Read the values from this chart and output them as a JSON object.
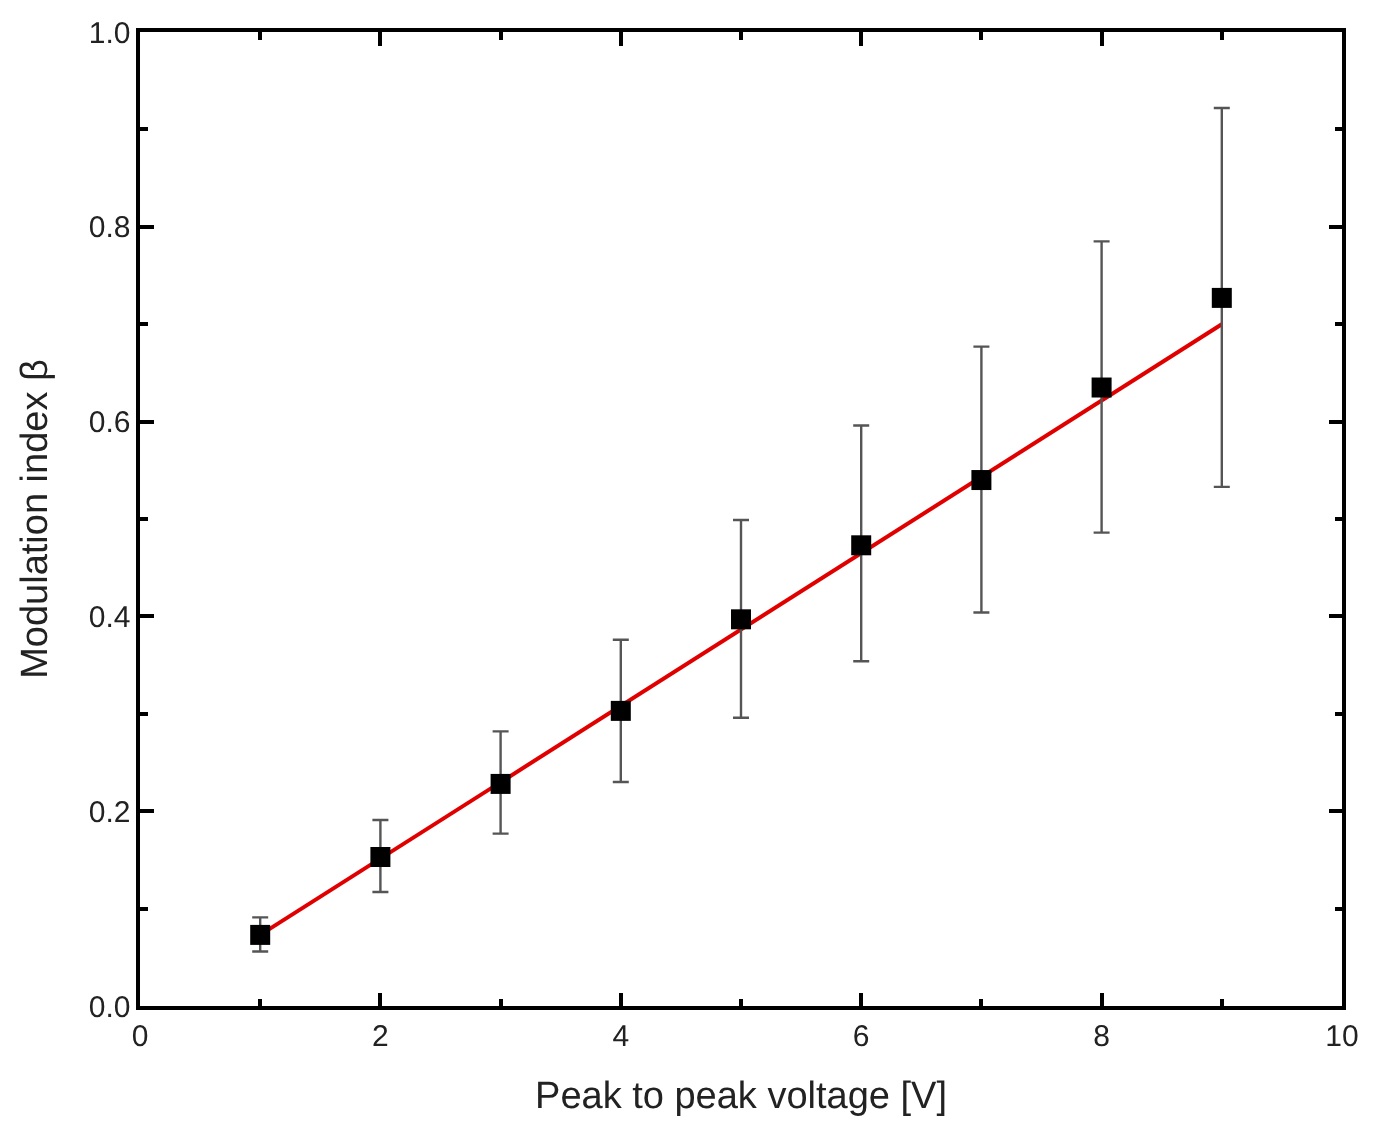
{
  "chart_data": {
    "type": "scatter",
    "xlabel": "Peak to peak voltage [V]",
    "ylabel": "Modulation index β",
    "xlim": [
      0,
      10
    ],
    "xticks": [
      0,
      2,
      4,
      6,
      8,
      10
    ],
    "ylim": [
      0.0,
      1.0
    ],
    "yticks": [
      {
        "value": 0,
        "label": "0.0"
      },
      {
        "value": 0.2,
        "label": "0.2"
      },
      {
        "value": 0.4,
        "label": "0.4"
      },
      {
        "value": 0.6,
        "label": "0.6"
      },
      {
        "value": 0.8,
        "label": "0.8"
      },
      {
        "value": 1.0,
        "label": "1.0"
      }
    ],
    "series": [
      {
        "color": "#000000",
        "marker": "square",
        "x": [
          1,
          2,
          3,
          4,
          5,
          6,
          7,
          8,
          9
        ],
        "values": [
          0.073,
          0.153,
          0.228,
          0.303,
          0.397,
          0.473,
          0.54,
          0.635,
          0.727
        ],
        "errors": [
          [
            0.056,
            0.091
          ],
          [
            0.117,
            0.191
          ],
          [
            0.177,
            0.282
          ],
          [
            0.23,
            0.376
          ],
          [
            0.296,
            0.499
          ],
          [
            0.354,
            0.596
          ],
          [
            0.404,
            0.677
          ],
          [
            0.486,
            0.785
          ],
          [
            0.533,
            0.922
          ]
        ]
      },
      {
        "type": "line",
        "color": "#e00000",
        "marker": "none",
        "line_style": "solid",
        "x": [
          1,
          9
        ],
        "values": [
          0.073,
          0.7
        ]
      }
    ]
  }
}
